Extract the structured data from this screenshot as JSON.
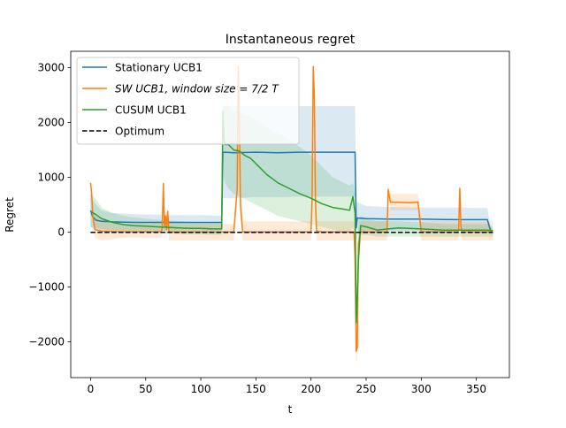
{
  "chart_data": {
    "type": "line",
    "title": "Instantaneous regret",
    "xlabel": "t",
    "ylabel": "Regret",
    "xlim": [
      -18,
      380
    ],
    "ylim": [
      -2650,
      3300
    ],
    "xticks": [
      0,
      50,
      100,
      150,
      200,
      250,
      300,
      350
    ],
    "yticks": [
      -2000,
      -1000,
      0,
      1000,
      2000,
      3000
    ],
    "grid": false,
    "legend_position": "top-left",
    "colors": {
      "stationary": "#1f77b4",
      "sw": "#ff7f0e",
      "cusum": "#2ca02c",
      "optimum": "#000000"
    },
    "series": [
      {
        "name": "Stationary UCB1",
        "color": "#1f77b4",
        "x": [
          0,
          2,
          5,
          10,
          20,
          40,
          60,
          80,
          100,
          119,
          120,
          121,
          130,
          150,
          170,
          190,
          210,
          230,
          240,
          241,
          242,
          250,
          270,
          300,
          330,
          360,
          363,
          365
        ],
        "y": [
          400,
          280,
          220,
          200,
          190,
          180,
          180,
          180,
          180,
          180,
          1460,
          1460,
          1450,
          1460,
          1450,
          1460,
          1460,
          1460,
          1460,
          80,
          260,
          250,
          240,
          240,
          230,
          230,
          20,
          10
        ],
        "band_upper": [
          700,
          600,
          500,
          400,
          350,
          330,
          320,
          310,
          310,
          300,
          2300,
          2300,
          2300,
          2300,
          2300,
          2300,
          2300,
          2300,
          2300,
          500,
          550,
          480,
          460,
          450,
          450,
          440,
          100,
          60
        ],
        "band_lower": [
          100,
          60,
          40,
          30,
          30,
          30,
          30,
          30,
          30,
          30,
          620,
          620,
          620,
          640,
          640,
          650,
          650,
          650,
          650,
          -300,
          -50,
          30,
          30,
          30,
          30,
          30,
          -40,
          -40
        ]
      },
      {
        "name": "SW UCB1, window size = 7/2 T",
        "color": "#ff7f0e",
        "x": [
          0,
          1,
          2,
          4,
          10,
          30,
          60,
          64,
          65,
          66,
          67,
          68,
          69,
          70,
          71,
          72,
          73,
          80,
          100,
          120,
          130,
          133,
          134,
          135,
          136,
          138,
          140,
          150,
          170,
          190,
          199,
          200,
          201,
          202,
          203,
          204,
          205,
          210,
          230,
          239,
          240,
          241,
          242,
          243,
          245,
          250,
          269,
          270,
          272,
          290,
          297,
          300,
          320,
          333,
          334,
          335,
          336,
          337,
          350,
          363,
          365
        ],
        "y": [
          900,
          700,
          300,
          50,
          20,
          10,
          10,
          10,
          50,
          890,
          100,
          300,
          50,
          380,
          20,
          10,
          5,
          5,
          5,
          5,
          5,
          800,
          3030,
          2000,
          500,
          10,
          5,
          5,
          5,
          5,
          5,
          5,
          600,
          3020,
          2500,
          600,
          20,
          5,
          5,
          5,
          -500,
          -2170,
          -2100,
          -200,
          10,
          5,
          5,
          780,
          550,
          540,
          550,
          10,
          5,
          5,
          50,
          800,
          100,
          10,
          5,
          5,
          5
        ],
        "band_upper": [
          950,
          800,
          450,
          300,
          250,
          150,
          150,
          150,
          200,
          950,
          350,
          450,
          250,
          450,
          200,
          150,
          150,
          150,
          150,
          150,
          150,
          900,
          3000,
          2200,
          700,
          250,
          200,
          200,
          200,
          200,
          200,
          200,
          700,
          3000,
          2600,
          700,
          200,
          200,
          200,
          200,
          100,
          -1800,
          -1600,
          100,
          200,
          200,
          200,
          850,
          700,
          700,
          700,
          200,
          200,
          200,
          200,
          850,
          250,
          200,
          200,
          200,
          200
        ],
        "band_lower": [
          850,
          600,
          150,
          -100,
          -150,
          -100,
          -100,
          -100,
          -100,
          800,
          -150,
          100,
          -150,
          300,
          -150,
          -150,
          -150,
          -150,
          -150,
          -150,
          -150,
          700,
          3000,
          1800,
          300,
          -150,
          -150,
          -150,
          -150,
          -150,
          -150,
          -150,
          500,
          3000,
          2400,
          500,
          -150,
          -150,
          -150,
          -150,
          -1100,
          -2350,
          -2350,
          -500,
          -150,
          -150,
          -150,
          700,
          400,
          400,
          400,
          -150,
          -150,
          -150,
          -100,
          750,
          -50,
          -150,
          -150,
          -150,
          -150
        ]
      },
      {
        "name": "CUSUM UCB1",
        "color": "#2ca02c",
        "x": [
          0,
          5,
          10,
          20,
          30,
          40,
          50,
          60,
          70,
          80,
          90,
          100,
          110,
          119,
          120,
          121,
          122,
          125,
          130,
          135,
          140,
          145,
          150,
          160,
          170,
          180,
          190,
          200,
          210,
          220,
          230,
          235,
          238,
          240,
          241,
          242,
          243,
          245,
          250,
          260,
          270,
          280,
          300,
          320,
          340,
          360,
          365
        ],
        "y": [
          380,
          320,
          250,
          180,
          140,
          120,
          110,
          100,
          90,
          80,
          70,
          70,
          60,
          60,
          2200,
          1700,
          1600,
          1600,
          1500,
          1480,
          1400,
          1350,
          1250,
          1050,
          900,
          800,
          700,
          620,
          520,
          450,
          420,
          400,
          650,
          350,
          -1650,
          -1200,
          -500,
          120,
          100,
          40,
          60,
          80,
          60,
          40,
          40,
          40,
          30
        ],
        "band_upper": [
          700,
          600,
          450,
          350,
          300,
          270,
          250,
          230,
          220,
          200,
          190,
          180,
          170,
          170,
          2300,
          2300,
          2300,
          2300,
          2200,
          2200,
          2150,
          2100,
          2050,
          1900,
          1800,
          1700,
          1550,
          1400,
          1200,
          1000,
          900,
          850,
          900,
          700,
          -1000,
          -600,
          200,
          300,
          250,
          200,
          200,
          200,
          180,
          150,
          150,
          150,
          100
        ],
        "band_lower": [
          100,
          80,
          60,
          30,
          20,
          10,
          5,
          0,
          -20,
          -30,
          -40,
          -40,
          -50,
          -50,
          1700,
          1000,
          900,
          800,
          700,
          650,
          600,
          550,
          500,
          400,
          300,
          250,
          200,
          150,
          100,
          50,
          0,
          0,
          100,
          -100,
          -2300,
          -1800,
          -1000,
          -50,
          -50,
          -80,
          -80,
          -80,
          -80,
          -80,
          -80,
          -80,
          -80
        ]
      },
      {
        "name": "Optimum",
        "color": "#000000",
        "dashed": true,
        "x": [
          0,
          365
        ],
        "y": [
          0,
          0
        ]
      }
    ]
  }
}
